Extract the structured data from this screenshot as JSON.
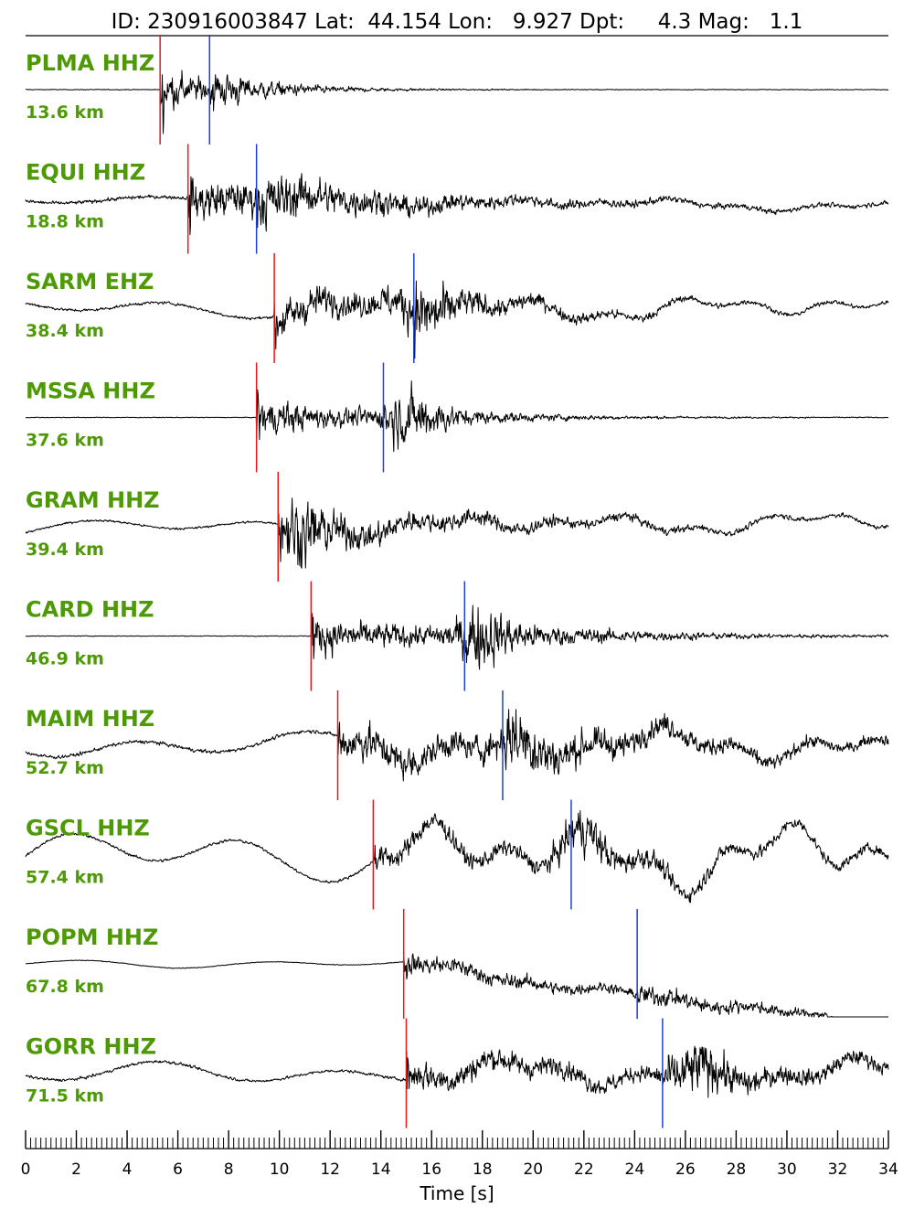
{
  "chart_data": {
    "type": "line",
    "title": "ID: 230916003847 Lat:  44.154 Lon:   9.927 Dpt:     4.3 Mag:   1.1",
    "xlabel": "Time [s]",
    "xlim": [
      0,
      34
    ],
    "x_major_ticks": [
      0,
      2,
      4,
      6,
      8,
      10,
      12,
      14,
      16,
      18,
      20,
      22,
      24,
      26,
      28,
      30,
      32,
      34
    ],
    "x_minor_step": 0.2,
    "p_pick_color": "#e31a1c",
    "s_pick_color": "#1f3fd1",
    "label_color": "#4e9a06",
    "trace_color": "#000000",
    "series": [
      {
        "name": "PLMA HHZ",
        "distance": "13.6 km",
        "p_time": 5.3,
        "s_time": 7.25,
        "noise": 0.01,
        "coda_decay": 3.0,
        "peak_amp": 1.0,
        "smooth_amp": 0.0,
        "drift": 0.0,
        "burst_time": null,
        "burst_amp": 0.0
      },
      {
        "name": "EQUI HHZ",
        "distance": "18.8 km",
        "p_time": 6.4,
        "s_time": 9.1,
        "noise": 0.05,
        "coda_decay": 7.0,
        "peak_amp": 1.0,
        "smooth_amp": 0.15,
        "drift": -0.15,
        "burst_time": null,
        "burst_amp": 0.0
      },
      {
        "name": "SARM EHZ",
        "distance": "38.4 km",
        "p_time": 9.8,
        "s_time": 15.3,
        "noise": 0.04,
        "coda_decay": 6.0,
        "peak_amp": 0.9,
        "smooth_amp": 0.35,
        "drift": 0.0,
        "burst_time": 15.5,
        "burst_amp": 0.7
      },
      {
        "name": "MSSA HHZ",
        "distance": "37.6 km",
        "p_time": 9.1,
        "s_time": 14.1,
        "noise": 0.01,
        "coda_decay": 5.0,
        "peak_amp": 0.9,
        "smooth_amp": 0.0,
        "drift": 0.0,
        "burst_time": 15.3,
        "burst_amp": 0.6
      },
      {
        "name": "GRAM HHZ",
        "distance": "39.4 km",
        "p_time": 9.95,
        "s_time": null,
        "noise": 0.03,
        "coda_decay": 8.0,
        "peak_amp": 0.9,
        "smooth_amp": 0.3,
        "drift": 0.1,
        "burst_time": 10.8,
        "burst_amp": 0.8
      },
      {
        "name": "CARD HHZ",
        "distance": "46.9 km",
        "p_time": 11.25,
        "s_time": 17.3,
        "noise": 0.01,
        "coda_decay": 7.0,
        "peak_amp": 0.9,
        "smooth_amp": 0.0,
        "drift": 0.0,
        "burst_time": 17.8,
        "burst_amp": 0.7
      },
      {
        "name": "MAIM HHZ",
        "distance": "52.7 km",
        "p_time": 12.3,
        "s_time": 18.8,
        "noise": 0.05,
        "coda_decay": 10.0,
        "peak_amp": 0.9,
        "smooth_amp": 0.5,
        "drift": 0.0,
        "burst_time": 19.5,
        "burst_amp": 0.5
      },
      {
        "name": "GSCL HHZ",
        "distance": "57.4 km",
        "p_time": 13.7,
        "s_time": 21.5,
        "noise": 0.04,
        "coda_decay": 12.0,
        "peak_amp": 0.5,
        "smooth_amp": 0.95,
        "drift": 0.0,
        "burst_time": 21.8,
        "burst_amp": 0.5
      },
      {
        "name": "POPM HHZ",
        "distance": "67.8 km",
        "p_time": 14.9,
        "s_time": 24.1,
        "noise": 0.01,
        "coda_decay": 10.0,
        "peak_amp": 0.5,
        "smooth_amp": 0.15,
        "drift": -1.2,
        "burst_time": null,
        "burst_amp": 0.0
      },
      {
        "name": "GORR HHZ",
        "distance": "71.5 km",
        "p_time": 15.0,
        "s_time": 25.1,
        "noise": 0.04,
        "coda_decay": 12.0,
        "peak_amp": 0.7,
        "smooth_amp": 0.4,
        "drift": 0.0,
        "burst_time": 26.5,
        "burst_amp": 0.6
      }
    ]
  }
}
